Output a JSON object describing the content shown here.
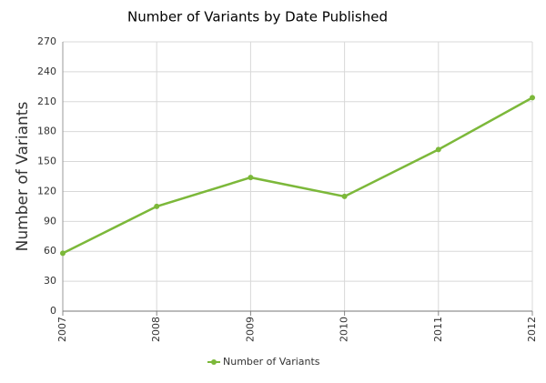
{
  "chart_data": {
    "type": "line",
    "title": "Number of Variants by Date Published",
    "y_label": "Number of Variants",
    "x": [
      2007,
      2008,
      2009,
      2010,
      2011,
      2012
    ],
    "series": [
      {
        "name": "Number of Variants",
        "color": "#7cb83a",
        "values": [
          58,
          105,
          134,
          115,
          162,
          214
        ]
      }
    ],
    "xlim": [
      2007,
      2012
    ],
    "xticks": [
      2007,
      2008,
      2009,
      2010,
      2011,
      2012
    ],
    "ylim": [
      0,
      270
    ],
    "yticks": [
      0,
      30,
      60,
      90,
      120,
      150,
      180,
      210,
      240,
      270
    ],
    "grid": true,
    "legend": "bottom"
  }
}
